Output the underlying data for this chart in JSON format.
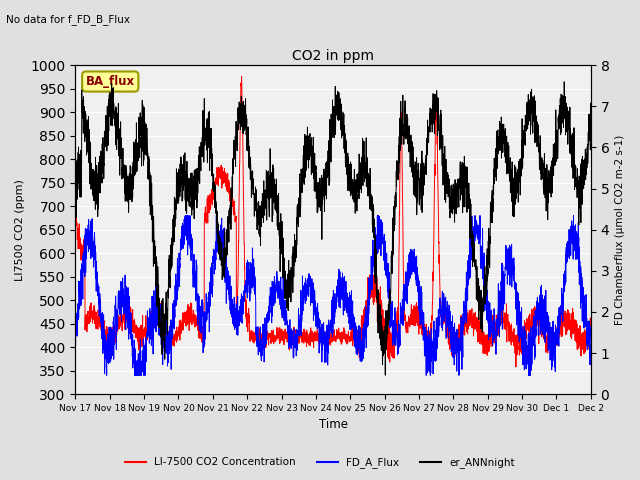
{
  "title": "CO2 in ppm",
  "top_left_text": "No data for f_FD_B_Flux",
  "ylabel_left": "LI7500 CO2 (ppm)",
  "ylabel_right": "FD Chamberflux (μmol CO2 m-2 s-1)",
  "xlabel": "Time",
  "ylim_left": [
    300,
    1000
  ],
  "ylim_right": [
    0.0,
    8.0
  ],
  "yticks_left": [
    300,
    350,
    400,
    450,
    500,
    550,
    600,
    650,
    700,
    750,
    800,
    850,
    900,
    950,
    1000
  ],
  "yticks_right": [
    0.0,
    1.0,
    2.0,
    3.0,
    4.0,
    5.0,
    6.0,
    7.0,
    8.0
  ],
  "xtick_labels": [
    "Nov 17",
    "Nov 18",
    "Nov 19",
    "Nov 20",
    "Nov 21",
    "Nov 22",
    "Nov 23",
    "Nov 24",
    "Nov 25",
    "Nov 26",
    "Nov 27",
    "Nov 28",
    "Nov 29",
    "Nov 30",
    "Dec 1",
    "Dec 2"
  ],
  "legend_box_label": "BA_flux",
  "legend_box_color": "#FFFF99",
  "legend_box_edge": "#999900",
  "fig_bg_color": "#E0E0E0",
  "plot_bg_color": "#F0F0F0",
  "grid_color": "white",
  "red_color": "#FF0000",
  "blue_color": "#0000FF",
  "black_color": "#000000",
  "legend_labels": [
    "LI-7500 CO2 Concentration",
    "FD_A_Flux",
    "er_ANNnight"
  ],
  "legend_colors": [
    "#FF0000",
    "#0000FF",
    "#000000"
  ],
  "figsize": [
    6.4,
    4.8
  ],
  "dpi": 100
}
